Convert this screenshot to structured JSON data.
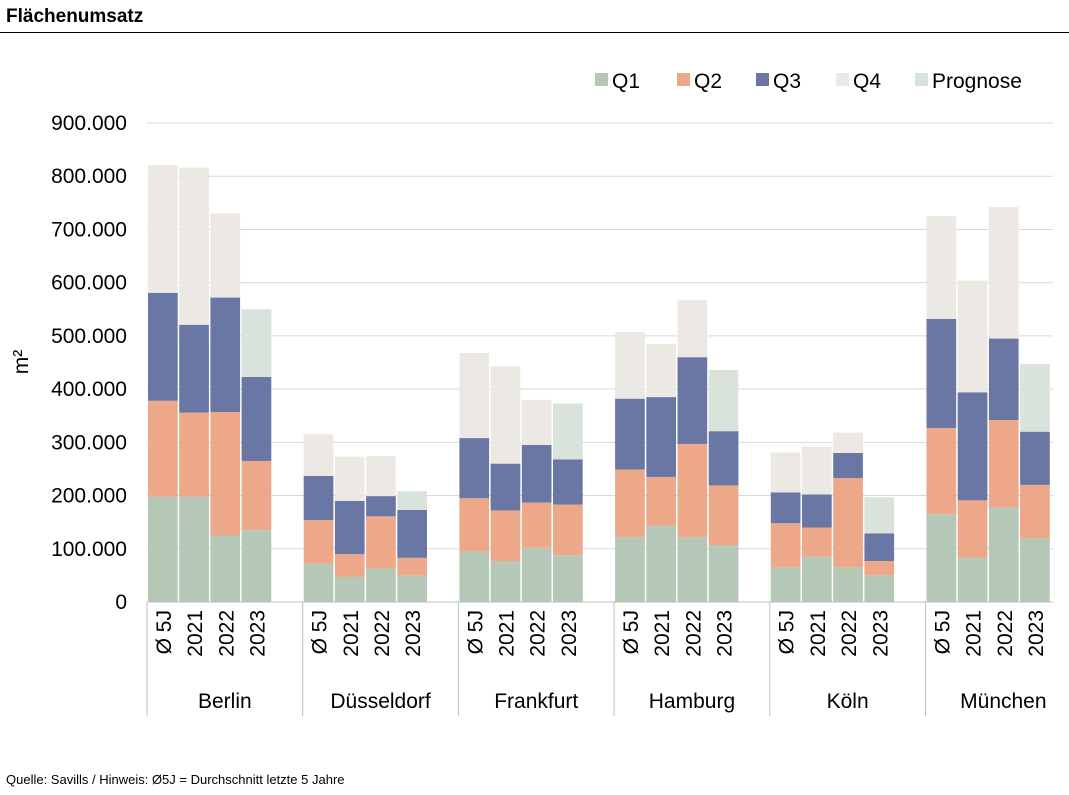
{
  "header": {
    "title": "Flächenumsatz"
  },
  "footer": {
    "source": "Quelle: Savills / Hinweis: Ø5J = Durchschnitt letzte 5 Jahre"
  },
  "chart_data": {
    "type": "bar",
    "stacked": true,
    "ylabel": "m²",
    "ylim": [
      0,
      900000
    ],
    "yticks": [
      0,
      100000,
      200000,
      300000,
      400000,
      500000,
      600000,
      700000,
      800000,
      900000
    ],
    "ytick_labels": [
      "0",
      "100.000",
      "200.000",
      "300.000",
      "400.000",
      "500.000",
      "600.000",
      "700.000",
      "800.000",
      "900.000"
    ],
    "grid": true,
    "legend_position": "top-right",
    "groups": [
      "Berlin",
      "Düsseldorf",
      "Frankfurt",
      "Hamburg",
      "Köln",
      "München"
    ],
    "subcategories": [
      "Ø 5J",
      "2021",
      "2022",
      "2023"
    ],
    "series": [
      {
        "name": "Q1",
        "color": "#b5c7b6",
        "values": [
          [
            198000,
            198000,
            125000,
            135000
          ],
          [
            72000,
            47000,
            63000,
            50000
          ],
          [
            95000,
            77000,
            102000,
            88000
          ],
          [
            122000,
            143000,
            122000,
            107000
          ],
          [
            65000,
            85000,
            65000,
            50000
          ],
          [
            165000,
            83000,
            177000,
            120000
          ]
        ]
      },
      {
        "name": "Q2",
        "color": "#eda889",
        "values": [
          [
            180000,
            158000,
            232000,
            130000
          ],
          [
            82000,
            43000,
            98000,
            33000
          ],
          [
            100000,
            95000,
            85000,
            95000
          ],
          [
            127000,
            92000,
            175000,
            112000
          ],
          [
            83000,
            55000,
            168000,
            27000
          ],
          [
            162000,
            108000,
            165000,
            100000
          ]
        ]
      },
      {
        "name": "Q3",
        "color": "#6a77a5",
        "values": [
          [
            203000,
            165000,
            215000,
            158000
          ],
          [
            83000,
            100000,
            38000,
            90000
          ],
          [
            113000,
            88000,
            108000,
            85000
          ],
          [
            133000,
            150000,
            163000,
            102000
          ],
          [
            58000,
            62000,
            47000,
            52000
          ],
          [
            205000,
            203000,
            153000,
            100000
          ]
        ]
      },
      {
        "name": "Q4",
        "color": "#ece9e4",
        "values": [
          [
            240000,
            295000,
            158000,
            0
          ],
          [
            78000,
            83000,
            75000,
            0
          ],
          [
            160000,
            183000,
            85000,
            0
          ],
          [
            125000,
            100000,
            107000,
            0
          ],
          [
            75000,
            90000,
            38000,
            0
          ],
          [
            193000,
            210000,
            247000,
            0
          ]
        ]
      },
      {
        "name": "Prognose",
        "color": "#d9e3dc",
        "values": [
          [
            0,
            0,
            0,
            127000
          ],
          [
            0,
            0,
            0,
            35000
          ],
          [
            0,
            0,
            0,
            105000
          ],
          [
            0,
            0,
            0,
            115000
          ],
          [
            0,
            0,
            0,
            68000
          ],
          [
            0,
            0,
            0,
            127000
          ]
        ]
      }
    ]
  }
}
